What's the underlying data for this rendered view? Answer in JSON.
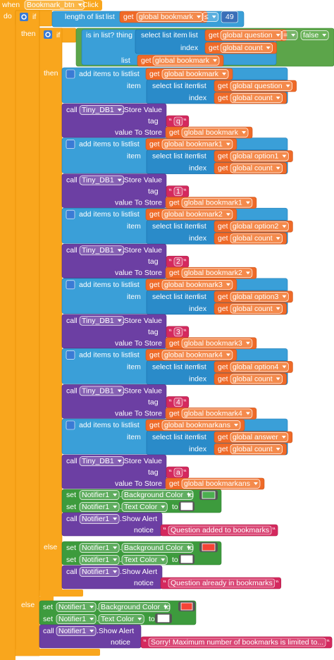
{
  "lines": [
    [
      "when",
      "Bookmark_btn",
      ".Click"
    ],
    [
      "do"
    ],
    [
      "if",
      "length of list",
      "list",
      "get",
      "global bookmark",
      "≤",
      "49"
    ],
    [
      "then"
    ],
    [
      "if",
      "is in list? thing",
      "select list item",
      "list",
      "get",
      "global question",
      "=",
      "false"
    ],
    [
      "index",
      "get",
      "global count"
    ],
    [
      "list",
      "get",
      "global bookmark"
    ],
    [
      "then"
    ],
    [
      "add items to list",
      "list",
      "get",
      "global bookmark"
    ],
    [
      "item",
      "select list item",
      "list",
      "get",
      "global question"
    ],
    [
      "index",
      "get",
      "global count"
    ],
    [
      "call",
      "Tiny_DB1",
      ".Store Value"
    ],
    [
      "tag",
      "q"
    ],
    [
      "value To Store",
      "get",
      "global bookmark"
    ],
    [
      "add items to list",
      "list",
      "get",
      "global bookmark1"
    ],
    [
      "item",
      "select list item",
      "list",
      "get",
      "global option1"
    ],
    [
      "index",
      "get",
      "global count"
    ],
    [
      "call",
      "Tiny_DB1",
      ".Store Value"
    ],
    [
      "tag",
      "1"
    ],
    [
      "value To Store",
      "get",
      "global bookmark1"
    ],
    [
      "add items to list",
      "list",
      "get",
      "global bookmark2"
    ],
    [
      "item",
      "select list item",
      "list",
      "get",
      "global option2"
    ],
    [
      "index",
      "get",
      "global count"
    ],
    [
      "call",
      "Tiny_DB1",
      ".Store Value"
    ],
    [
      "tag",
      "2"
    ],
    [
      "value To Store",
      "get",
      "global bookmark2"
    ],
    [
      "add items to list",
      "list",
      "get",
      "global bookmark3"
    ],
    [
      "item",
      "select list item",
      "list",
      "get",
      "global option3"
    ],
    [
      "index",
      "get",
      "global count"
    ],
    [
      "call",
      "Tiny_DB1",
      ".Store Value"
    ],
    [
      "tag",
      "3"
    ],
    [
      "value To Store",
      "get",
      "global bookmark3"
    ],
    [
      "add items to list",
      "list",
      "get",
      "global bookmark4"
    ],
    [
      "item",
      "select list item",
      "list",
      "get",
      "global option4"
    ],
    [
      "index",
      "get",
      "global count"
    ],
    [
      "call",
      "Tiny_DB1",
      ".Store Value"
    ],
    [
      "tag",
      "4"
    ],
    [
      "value To Store",
      "get",
      "global bookmark4"
    ],
    [
      "add items to list",
      "list",
      "get",
      "global bookmarkans"
    ],
    [
      "item",
      "select list item",
      "list",
      "get",
      "global answer"
    ],
    [
      "index",
      "get",
      "global count"
    ],
    [
      "call",
      "Tiny_DB1",
      ".Store Value"
    ],
    [
      "tag",
      "a"
    ],
    [
      "value To Store",
      "get",
      "global bookmarkans"
    ],
    [
      "set",
      "Notifier1",
      ".",
      "Background Color",
      "to"
    ],
    [
      "set",
      "Notifier1",
      ".",
      "Text Color",
      "to"
    ],
    [
      "call",
      "Notifier1",
      ".Show Alert"
    ],
    [
      "notice",
      "Question added to bookmarks"
    ],
    [
      "else"
    ],
    [
      "set",
      "Notifier1",
      ".",
      "Background Color",
      "to"
    ],
    [
      "set",
      "Notifier1",
      ".",
      "Text Color",
      "to"
    ],
    [
      "call",
      "Notifier1",
      ".Show Alert"
    ],
    [
      "notice",
      "Question already in bookmarks"
    ],
    [
      "else"
    ],
    [
      "set",
      "Notifier1",
      ".",
      "Background Color",
      "to"
    ],
    [
      "set",
      "Notifier1",
      ".",
      "Text Color",
      "to"
    ],
    [
      "call",
      "Notifier1",
      ".Show Alert"
    ],
    [
      "notice",
      "Sorry! Maximum number of bookmarks is limited to..."
    ]
  ]
}
